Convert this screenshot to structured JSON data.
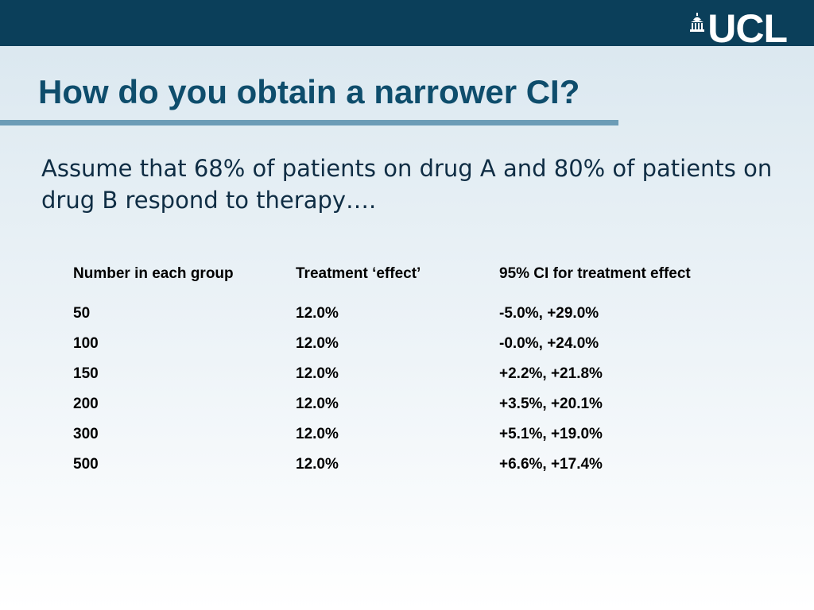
{
  "header": {
    "logo_text": "UCL",
    "logo_icon": "portico-icon"
  },
  "title": "How do you obtain a narrower CI?",
  "intro": "Assume that 68% of patients on drug A and 80% of patients on drug B respond to therapy….",
  "table": {
    "headers": [
      "Number in each group",
      "Treatment ‘effect’",
      "95% CI for treatment effect"
    ],
    "rows": [
      [
        "50",
        "12.0%",
        "-5.0%, +29.0%"
      ],
      [
        "100",
        "12.0%",
        "-0.0%, +24.0%"
      ],
      [
        "150",
        "12.0%",
        "+2.2%, +21.8%"
      ],
      [
        "200",
        "12.0%",
        "+3.5%, +20.1%"
      ],
      [
        "300",
        "12.0%",
        "+5.1%, +19.0%"
      ],
      [
        "500",
        "12.0%",
        "+6.6%, +17.4%"
      ]
    ]
  },
  "colors": {
    "header_bar": "#0b3f5a",
    "title": "#0e4d6c",
    "rule": "#6c9cb6"
  }
}
